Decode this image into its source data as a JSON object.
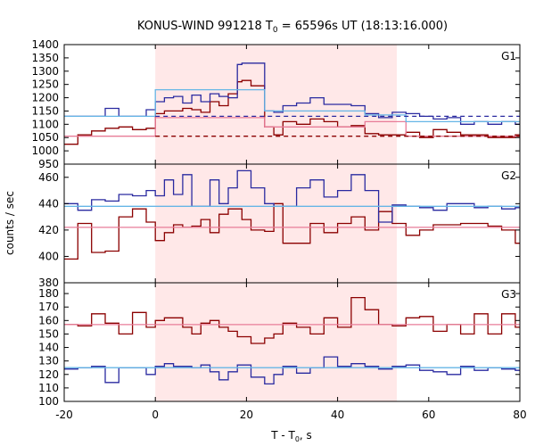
{
  "title": {
    "prefix": "KONUS-WIND 991218 T",
    "sub": "0",
    "suffix": " = 65596s UT (18:13:16.000)"
  },
  "ylabel": "counts / sec",
  "xlabel": {
    "prefix": "T - T",
    "sub": "0",
    "suffix": ", s"
  },
  "colors": {
    "dark_red": "#8b0000",
    "blue": "#2a2aa0",
    "pink": "#e87c98",
    "light_blue": "#66b6e6",
    "shade": "#ffe8e8"
  },
  "chart_data": [
    {
      "type": "line",
      "panel": "G1",
      "step": true,
      "ylim": [
        950,
        1400
      ],
      "xlim": [
        -20,
        80
      ],
      "xticks": [
        -20,
        0,
        20,
        40,
        60,
        80
      ],
      "yticks": [
        950,
        1000,
        1050,
        1100,
        1150,
        1200,
        1250,
        1300,
        1350,
        1400
      ],
      "shaded_interval": [
        0,
        53
      ],
      "series": [
        {
          "color": "dark_red",
          "x": [
            -20,
            -17,
            -14,
            -11,
            -8,
            -5,
            -2,
            0,
            2,
            4,
            6,
            8,
            10,
            12,
            14,
            16,
            18,
            19,
            21,
            24,
            26,
            28,
            31,
            34,
            37,
            40,
            43,
            46,
            49,
            52,
            55,
            58,
            61,
            64,
            67,
            70,
            73,
            76,
            79
          ],
          "y": [
            1025,
            1060,
            1075,
            1085,
            1090,
            1080,
            1085,
            1140,
            1150,
            1150,
            1160,
            1155,
            1145,
            1185,
            1170,
            1215,
            1260,
            1265,
            1245,
            1090,
            1060,
            1110,
            1100,
            1120,
            1110,
            1090,
            1095,
            1065,
            1060,
            1060,
            1070,
            1050,
            1080,
            1070,
            1060,
            1060,
            1050,
            1050,
            1060
          ]
        },
        {
          "color": "blue",
          "x": [
            -20,
            -17,
            -14,
            -11,
            -8,
            -5,
            -2,
            0,
            2,
            4,
            6,
            8,
            10,
            12,
            14,
            16,
            18,
            19,
            21,
            24,
            26,
            28,
            31,
            34,
            37,
            40,
            43,
            46,
            49,
            52,
            55,
            58,
            61,
            64,
            67,
            70,
            73,
            76,
            79
          ],
          "y": [
            1130,
            1130,
            1130,
            1160,
            1130,
            1130,
            1155,
            1185,
            1200,
            1205,
            1180,
            1210,
            1185,
            1215,
            1205,
            1200,
            1325,
            1330,
            1330,
            1150,
            1145,
            1170,
            1180,
            1200,
            1175,
            1175,
            1170,
            1140,
            1125,
            1145,
            1140,
            1130,
            1120,
            1125,
            1100,
            1110,
            1100,
            1110,
            1100
          ]
        },
        {
          "color": "pink",
          "x": [
            -20,
            0,
            24,
            46,
            55,
            80
          ],
          "y": [
            1055,
            1125,
            1090,
            1110,
            1055,
            1055
          ]
        },
        {
          "color": "light_blue",
          "x": [
            -20,
            0,
            24,
            46,
            55,
            80
          ],
          "y": [
            1130,
            1230,
            1150,
            1135,
            1110,
            1110
          ]
        },
        {
          "color": "dark_red",
          "dashed": true,
          "x": [
            0,
            80
          ],
          "y": [
            1055,
            1055
          ]
        },
        {
          "color": "blue",
          "dashed": true,
          "x": [
            0,
            80
          ],
          "y": [
            1130,
            1130
          ]
        }
      ]
    },
    {
      "type": "line",
      "panel": "G2",
      "step": true,
      "ylim": [
        380,
        470
      ],
      "xlim": [
        -20,
        80
      ],
      "xticks": [
        -20,
        0,
        20,
        40,
        60,
        80
      ],
      "yticks": [
        380,
        400,
        420,
        440,
        460
      ],
      "shaded_interval": [
        0,
        53
      ],
      "series": [
        {
          "color": "dark_red",
          "x": [
            -20,
            -17,
            -14,
            -11,
            -8,
            -5,
            -2,
            0,
            2,
            4,
            6,
            8,
            10,
            12,
            14,
            16,
            18,
            19,
            21,
            24,
            26,
            28,
            31,
            34,
            37,
            40,
            43,
            46,
            49,
            52,
            55,
            58,
            61,
            64,
            67,
            70,
            73,
            76,
            79
          ],
          "y": [
            398,
            425,
            403,
            404,
            430,
            436,
            426,
            412,
            418,
            424,
            422,
            423,
            428,
            418,
            432,
            436,
            436,
            428,
            420,
            419,
            440,
            410,
            410,
            425,
            418,
            425,
            430,
            420,
            434,
            425,
            416,
            420,
            424,
            424,
            425,
            425,
            423,
            420,
            410
          ]
        },
        {
          "color": "blue",
          "x": [
            -20,
            -17,
            -14,
            -11,
            -8,
            -5,
            -2,
            0,
            2,
            4,
            6,
            8,
            10,
            12,
            14,
            16,
            18,
            19,
            21,
            24,
            26,
            28,
            31,
            34,
            37,
            40,
            43,
            46,
            49,
            52,
            55,
            58,
            61,
            64,
            67,
            70,
            73,
            76,
            79
          ],
          "y": [
            440,
            435,
            443,
            442,
            447,
            446,
            450,
            446,
            458,
            447,
            462,
            438,
            438,
            458,
            440,
            452,
            465,
            465,
            452,
            440,
            438,
            438,
            452,
            458,
            445,
            450,
            462,
            450,
            426,
            439,
            438,
            437,
            435,
            440,
            440,
            437,
            438,
            436,
            437
          ]
        },
        {
          "color": "pink",
          "x": [
            -20,
            80
          ],
          "y": [
            422,
            422
          ]
        },
        {
          "color": "light_blue",
          "x": [
            -20,
            80
          ],
          "y": [
            438,
            438
          ]
        }
      ]
    },
    {
      "type": "line",
      "panel": "G3",
      "step": true,
      "ylim": [
        100,
        188
      ],
      "xlim": [
        -20,
        80
      ],
      "xticks": [
        -20,
        0,
        20,
        40,
        60,
        80
      ],
      "yticks": [
        100,
        110,
        120,
        130,
        140,
        150,
        160,
        170,
        180
      ],
      "shaded_interval": [
        0,
        53
      ],
      "series": [
        {
          "color": "dark_red",
          "x": [
            -20,
            -17,
            -14,
            -11,
            -8,
            -5,
            -2,
            0,
            2,
            4,
            6,
            8,
            10,
            12,
            14,
            16,
            18,
            19,
            21,
            24,
            26,
            28,
            31,
            34,
            37,
            40,
            43,
            46,
            49,
            52,
            55,
            58,
            61,
            64,
            67,
            70,
            73,
            76,
            79
          ],
          "y": [
            157,
            156,
            165,
            158,
            150,
            166,
            155,
            160,
            162,
            162,
            155,
            150,
            158,
            160,
            155,
            152,
            148,
            148,
            143,
            147,
            150,
            158,
            155,
            150,
            162,
            155,
            177,
            168,
            157,
            156,
            162,
            163,
            152,
            157,
            150,
            165,
            150,
            165,
            155
          ]
        },
        {
          "color": "blue",
          "x": [
            -20,
            -17,
            -14,
            -11,
            -8,
            -5,
            -2,
            0,
            2,
            4,
            6,
            8,
            10,
            12,
            14,
            16,
            18,
            19,
            21,
            24,
            26,
            28,
            31,
            34,
            37,
            40,
            43,
            46,
            49,
            52,
            55,
            58,
            61,
            64,
            67,
            70,
            73,
            76,
            79
          ],
          "y": [
            124,
            125,
            126,
            114,
            125,
            125,
            120,
            126,
            128,
            126,
            126,
            125,
            127,
            122,
            116,
            122,
            127,
            127,
            118,
            113,
            120,
            126,
            121,
            125,
            133,
            126,
            128,
            126,
            124,
            126,
            127,
            123,
            122,
            120,
            126,
            123,
            125,
            124,
            123
          ]
        },
        {
          "color": "pink",
          "x": [
            -20,
            80
          ],
          "y": [
            157,
            157
          ]
        },
        {
          "color": "light_blue",
          "x": [
            -20,
            80
          ],
          "y": [
            125,
            125
          ]
        }
      ]
    }
  ]
}
